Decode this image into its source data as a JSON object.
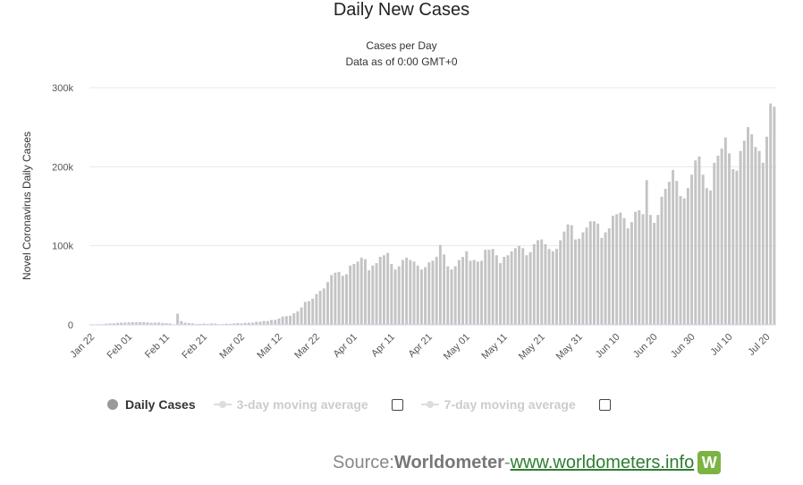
{
  "header": {
    "title": "Daily New Cases",
    "subtitle_line1": "Cases per Day",
    "subtitle_line2": "Data as of 0:00 GMT+0"
  },
  "legend": {
    "daily_cases": "Daily Cases",
    "avg3": "3-day moving average",
    "avg7": "7-day moving average"
  },
  "source": {
    "label": "Source: ",
    "name": "Worldometer",
    "sep": " - ",
    "link": "www.worldometers.info",
    "logo": "W"
  },
  "colors": {
    "bar": "#c4c4c4",
    "grid": "#e8e8e8",
    "logo": "#7cb342",
    "link": "#2e7d32"
  },
  "chart_data": {
    "type": "bar",
    "ylabel": "Novel Coronavirus Daily Cases",
    "ylim": [
      0,
      300000
    ],
    "yticks": [
      0,
      100000,
      200000,
      300000
    ],
    "ytick_labels": [
      "0",
      "100k",
      "200k",
      "300k"
    ],
    "x_tick_labels": [
      "Jan 22",
      "Feb 01",
      "Feb 11",
      "Feb 21",
      "Mar 02",
      "Mar 12",
      "Mar 22",
      "Apr 01",
      "Apr 11",
      "Apr 21",
      "May 01",
      "May 11",
      "May 21",
      "May 31",
      "Jun 10",
      "Jun 20",
      "Jun 30",
      "Jul 10",
      "Jul 20"
    ],
    "start_date": "2020-01-22",
    "values": [
      600,
      500,
      700,
      800,
      1400,
      1800,
      2000,
      2500,
      2800,
      2900,
      3100,
      3400,
      3200,
      3400,
      3400,
      3100,
      2600,
      2700,
      2900,
      2400,
      2100,
      1800,
      600,
      14000,
      4800,
      2800,
      2300,
      1900,
      1000,
      1200,
      1700,
      1200,
      1800,
      1600,
      800,
      1000,
      1400,
      1200,
      1800,
      2300,
      1800,
      2500,
      2600,
      2700,
      3800,
      3900,
      4800,
      4700,
      6100,
      6200,
      8000,
      10500,
      11000,
      11500,
      14500,
      17000,
      22000,
      29000,
      30000,
      33000,
      39000,
      43000,
      46000,
      54000,
      63000,
      66000,
      67000,
      62000,
      64000,
      75000,
      77000,
      80000,
      85000,
      83000,
      69000,
      75000,
      78000,
      86000,
      88000,
      91000,
      77000,
      70000,
      74000,
      82000,
      85000,
      82000,
      80000,
      75000,
      70000,
      73000,
      79000,
      81000,
      86000,
      101000,
      89000,
      74000,
      70000,
      74000,
      82000,
      86000,
      93000,
      81000,
      82000,
      80000,
      81000,
      95000,
      95000,
      96000,
      88000,
      78000,
      86000,
      88000,
      93000,
      97000,
      100000,
      97000,
      88000,
      92000,
      102000,
      107000,
      108000,
      102000,
      96000,
      93000,
      96000,
      107000,
      118000,
      127000,
      126000,
      108000,
      109000,
      117000,
      123000,
      131000,
      131000,
      128000,
      110000,
      117000,
      122000,
      138000,
      140000,
      142000,
      135000,
      122000,
      130000,
      143000,
      145000,
      140000,
      183000,
      139000,
      129000,
      139000,
      162000,
      172000,
      181000,
      196000,
      182000,
      163000,
      160000,
      173000,
      190000,
      208000,
      213000,
      190000,
      173000,
      170000,
      205000,
      214000,
      223000,
      237000,
      217000,
      197000,
      195000,
      220000,
      233000,
      250000,
      241000,
      225000,
      220000,
      205000,
      238000,
      280000,
      276000
    ]
  }
}
